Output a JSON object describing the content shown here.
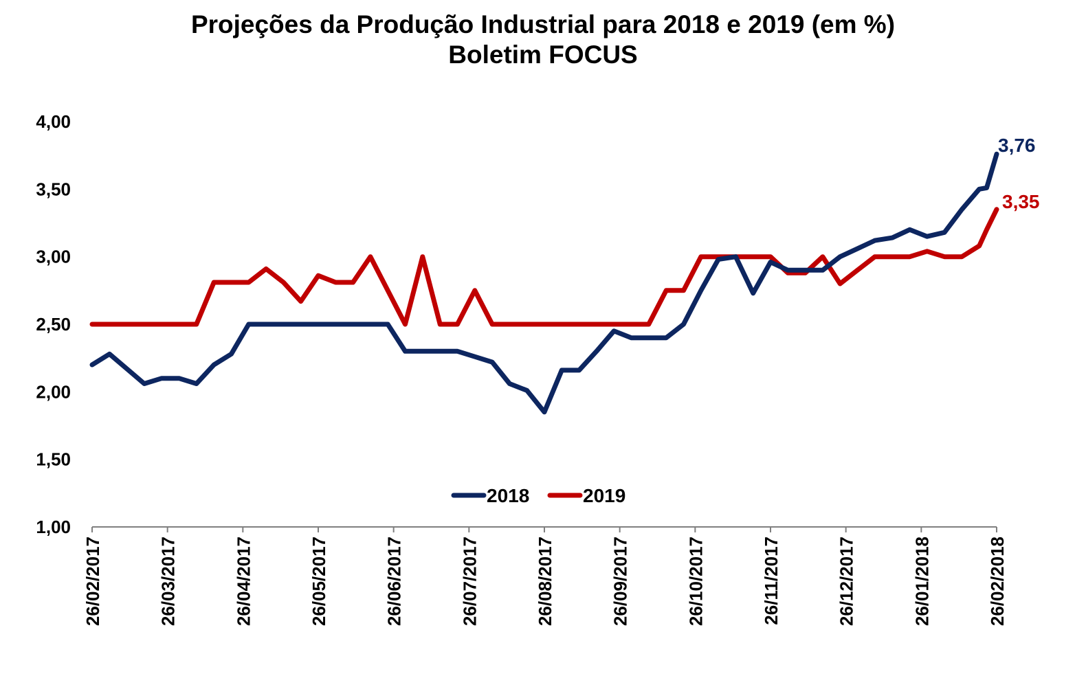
{
  "chart_data": {
    "type": "line",
    "title": "Projeções da Produção Industrial para 2018 e 2019 (em %)",
    "subtitle": "Boletim FOCUS",
    "xlabel": "",
    "ylabel": "",
    "ylim": [
      1.0,
      4.0
    ],
    "y_ticks": [
      "1,00",
      "1,50",
      "2,00",
      "2,50",
      "3,00",
      "3,50",
      "4,00"
    ],
    "x_ticks": [
      "26/02/2017",
      "26/03/2017",
      "26/04/2017",
      "26/05/2017",
      "26/06/2017",
      "26/07/2017",
      "26/08/2017",
      "26/09/2017",
      "26/10/2017",
      "26/11/2017",
      "26/12/2017",
      "26/01/2018",
      "26/02/2018"
    ],
    "x_range": [
      "2017-02-24",
      "2018-02-23"
    ],
    "grid": false,
    "legend_position": "bottom-center",
    "series": [
      {
        "name": "2018",
        "color": "#0d2660",
        "end_label": "3,76",
        "points": [
          [
            "2017-02-24",
            2.2
          ],
          [
            "2017-03-03",
            2.28
          ],
          [
            "2017-03-10",
            2.17
          ],
          [
            "2017-03-17",
            2.06
          ],
          [
            "2017-03-24",
            2.1
          ],
          [
            "2017-03-31",
            2.1
          ],
          [
            "2017-04-07",
            2.06
          ],
          [
            "2017-04-14",
            2.2
          ],
          [
            "2017-04-21",
            2.28
          ],
          [
            "2017-04-28",
            2.5
          ],
          [
            "2017-05-05",
            2.5
          ],
          [
            "2017-05-12",
            2.5
          ],
          [
            "2017-05-19",
            2.5
          ],
          [
            "2017-05-26",
            2.5
          ],
          [
            "2017-06-02",
            2.5
          ],
          [
            "2017-06-09",
            2.5
          ],
          [
            "2017-06-16",
            2.5
          ],
          [
            "2017-06-23",
            2.5
          ],
          [
            "2017-06-30",
            2.3
          ],
          [
            "2017-07-07",
            2.3
          ],
          [
            "2017-07-14",
            2.3
          ],
          [
            "2017-07-21",
            2.3
          ],
          [
            "2017-07-28",
            2.26
          ],
          [
            "2017-08-04",
            2.22
          ],
          [
            "2017-08-11",
            2.06
          ],
          [
            "2017-08-18",
            2.01
          ],
          [
            "2017-08-25",
            1.85
          ],
          [
            "2017-09-01",
            2.16
          ],
          [
            "2017-09-08",
            2.16
          ],
          [
            "2017-09-15",
            2.3
          ],
          [
            "2017-09-22",
            2.45
          ],
          [
            "2017-09-29",
            2.4
          ],
          [
            "2017-10-06",
            2.4
          ],
          [
            "2017-10-13",
            2.4
          ],
          [
            "2017-10-20",
            2.5
          ],
          [
            "2017-10-27",
            2.75
          ],
          [
            "2017-11-03",
            2.98
          ],
          [
            "2017-11-10",
            3.0
          ],
          [
            "2017-11-17",
            2.73
          ],
          [
            "2017-11-24",
            2.96
          ],
          [
            "2017-12-01",
            2.9
          ],
          [
            "2017-12-08",
            2.9
          ],
          [
            "2017-12-15",
            2.9
          ],
          [
            "2017-12-22",
            3.0
          ],
          [
            "2017-12-29",
            3.06
          ],
          [
            "2018-01-05",
            3.12
          ],
          [
            "2018-01-12",
            3.14
          ],
          [
            "2018-01-19",
            3.2
          ],
          [
            "2018-01-26",
            3.15
          ],
          [
            "2018-02-02",
            3.18
          ],
          [
            "2018-02-09",
            3.35
          ],
          [
            "2018-02-16",
            3.5
          ],
          [
            "2018-02-19",
            3.51
          ],
          [
            "2018-02-23",
            3.76
          ]
        ]
      },
      {
        "name": "2019",
        "color": "#c00000",
        "end_label": "3,35",
        "points": [
          [
            "2017-02-24",
            2.5
          ],
          [
            "2017-03-03",
            2.5
          ],
          [
            "2017-03-10",
            2.5
          ],
          [
            "2017-03-17",
            2.5
          ],
          [
            "2017-03-24",
            2.5
          ],
          [
            "2017-03-31",
            2.5
          ],
          [
            "2017-04-07",
            2.5
          ],
          [
            "2017-04-14",
            2.81
          ],
          [
            "2017-04-21",
            2.81
          ],
          [
            "2017-04-28",
            2.81
          ],
          [
            "2017-05-05",
            2.91
          ],
          [
            "2017-05-12",
            2.81
          ],
          [
            "2017-05-19",
            2.67
          ],
          [
            "2017-05-26",
            2.86
          ],
          [
            "2017-06-02",
            2.81
          ],
          [
            "2017-06-09",
            2.81
          ],
          [
            "2017-06-16",
            3.0
          ],
          [
            "2017-06-23",
            2.75
          ],
          [
            "2017-06-30",
            2.5
          ],
          [
            "2017-07-07",
            3.0
          ],
          [
            "2017-07-14",
            2.5
          ],
          [
            "2017-07-21",
            2.5
          ],
          [
            "2017-07-28",
            2.75
          ],
          [
            "2017-08-04",
            2.5
          ],
          [
            "2017-08-11",
            2.5
          ],
          [
            "2017-08-18",
            2.5
          ],
          [
            "2017-08-25",
            2.5
          ],
          [
            "2017-09-01",
            2.5
          ],
          [
            "2017-09-08",
            2.5
          ],
          [
            "2017-09-15",
            2.5
          ],
          [
            "2017-09-22",
            2.5
          ],
          [
            "2017-09-29",
            2.5
          ],
          [
            "2017-10-06",
            2.5
          ],
          [
            "2017-10-13",
            2.75
          ],
          [
            "2017-10-20",
            2.75
          ],
          [
            "2017-10-27",
            3.0
          ],
          [
            "2017-11-03",
            3.0
          ],
          [
            "2017-11-10",
            3.0
          ],
          [
            "2017-11-17",
            3.0
          ],
          [
            "2017-11-24",
            3.0
          ],
          [
            "2017-12-01",
            2.88
          ],
          [
            "2017-12-08",
            2.88
          ],
          [
            "2017-12-15",
            3.0
          ],
          [
            "2017-12-22",
            2.8
          ],
          [
            "2017-12-29",
            2.9
          ],
          [
            "2018-01-05",
            3.0
          ],
          [
            "2018-01-12",
            3.0
          ],
          [
            "2018-01-19",
            3.0
          ],
          [
            "2018-01-26",
            3.04
          ],
          [
            "2018-02-02",
            3.0
          ],
          [
            "2018-02-09",
            3.0
          ],
          [
            "2018-02-16",
            3.08
          ],
          [
            "2018-02-19",
            3.2
          ],
          [
            "2018-02-23",
            3.35
          ]
        ]
      }
    ]
  }
}
